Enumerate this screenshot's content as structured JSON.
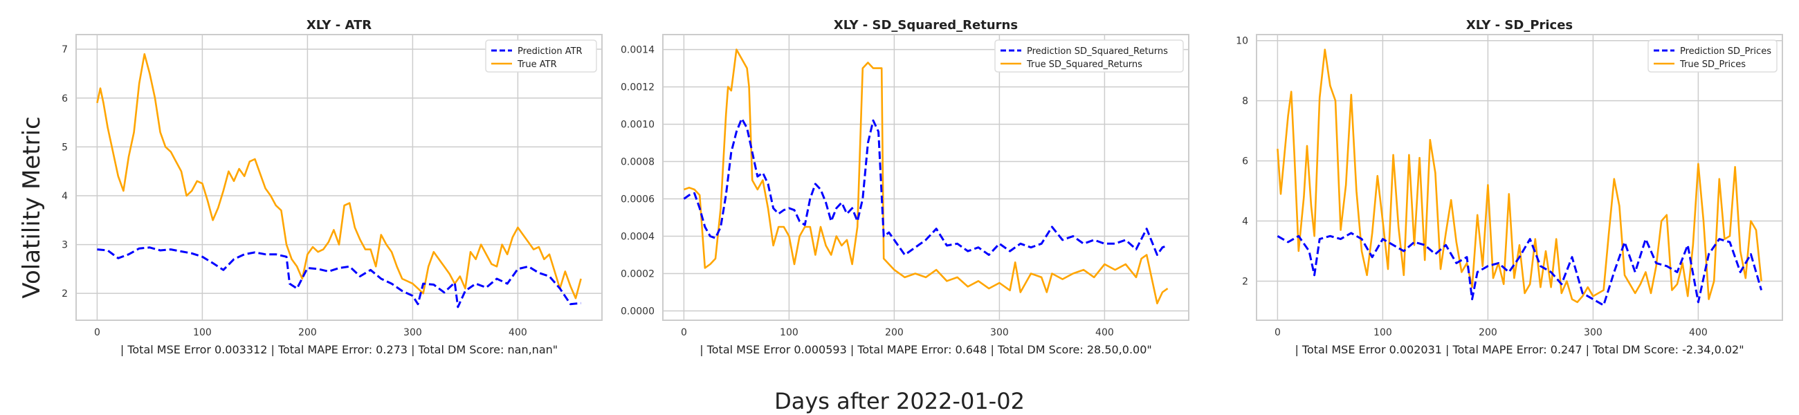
{
  "figure": {
    "ylabel": "Volatility Metric",
    "xlabel": "Days after 2022-01-02"
  },
  "chart_data": [
    {
      "type": "line",
      "title": "XLY - ATR",
      "xlabel": "| Total MSE Error 0.003312 | Total MAPE Error: 0.273 | Total DM Score: nan,nan\"",
      "ylabel": "",
      "xlim": [
        -20,
        480
      ],
      "ylim": [
        1.45,
        7.3
      ],
      "xticks": [
        0,
        100,
        200,
        300,
        400
      ],
      "yticks": [
        2,
        3,
        4,
        5,
        6,
        7
      ],
      "ytick_labels": [
        "2",
        "3",
        "4",
        "5",
        "6",
        "7"
      ],
      "grid": true,
      "legend": "top-right",
      "series": [
        {
          "name": "Prediction ATR",
          "color": "#0000ff",
          "dashed": true,
          "x": [
            0,
            10,
            20,
            30,
            40,
            50,
            60,
            70,
            80,
            90,
            100,
            110,
            120,
            130,
            140,
            150,
            160,
            170,
            180,
            183,
            190,
            200,
            210,
            220,
            230,
            240,
            250,
            260,
            270,
            280,
            290,
            300,
            305,
            310,
            320,
            330,
            340,
            343,
            350,
            360,
            370,
            380,
            390,
            400,
            410,
            420,
            430,
            440,
            450,
            460
          ],
          "values": [
            2.9,
            2.88,
            2.72,
            2.8,
            2.92,
            2.94,
            2.88,
            2.9,
            2.86,
            2.82,
            2.75,
            2.62,
            2.48,
            2.7,
            2.8,
            2.84,
            2.8,
            2.8,
            2.75,
            2.2,
            2.1,
            2.52,
            2.5,
            2.45,
            2.52,
            2.55,
            2.35,
            2.48,
            2.3,
            2.2,
            2.05,
            1.95,
            1.78,
            2.2,
            2.18,
            2.02,
            2.22,
            1.72,
            2.05,
            2.2,
            2.12,
            2.3,
            2.2,
            2.5,
            2.55,
            2.42,
            2.35,
            2.1,
            1.78,
            1.8
          ]
        },
        {
          "name": "True ATR",
          "color": "#ffa500",
          "dashed": false,
          "x": [
            0,
            3,
            6,
            10,
            15,
            20,
            25,
            30,
            35,
            40,
            45,
            50,
            55,
            60,
            65,
            70,
            75,
            80,
            85,
            90,
            95,
            100,
            105,
            110,
            115,
            120,
            125,
            130,
            135,
            140,
            145,
            150,
            155,
            160,
            165,
            170,
            175,
            180,
            185,
            190,
            195,
            200,
            205,
            210,
            215,
            220,
            225,
            230,
            235,
            240,
            245,
            250,
            255,
            260,
            265,
            270,
            275,
            280,
            285,
            290,
            295,
            300,
            305,
            310,
            315,
            320,
            325,
            330,
            335,
            340,
            345,
            350,
            355,
            360,
            365,
            370,
            375,
            380,
            385,
            390,
            395,
            400,
            405,
            410,
            415,
            420,
            425,
            430,
            435,
            440,
            445,
            450,
            455,
            460
          ],
          "values": [
            5.9,
            6.2,
            5.9,
            5.4,
            4.9,
            4.4,
            4.1,
            4.8,
            5.3,
            6.3,
            6.9,
            6.5,
            6.0,
            5.3,
            5.0,
            4.9,
            4.7,
            4.5,
            4.0,
            4.1,
            4.3,
            4.25,
            3.9,
            3.5,
            3.75,
            4.1,
            4.5,
            4.3,
            4.55,
            4.4,
            4.7,
            4.75,
            4.45,
            4.15,
            4.0,
            3.8,
            3.7,
            3.0,
            2.7,
            2.55,
            2.3,
            2.8,
            2.95,
            2.85,
            2.9,
            3.05,
            3.3,
            3.0,
            3.8,
            3.85,
            3.35,
            3.1,
            2.9,
            2.9,
            2.55,
            3.2,
            3.0,
            2.85,
            2.55,
            2.3,
            2.25,
            2.2,
            2.1,
            2.0,
            2.55,
            2.85,
            2.7,
            2.55,
            2.4,
            2.2,
            2.35,
            2.1,
            2.85,
            2.7,
            3.0,
            2.8,
            2.6,
            2.55,
            3.0,
            2.8,
            3.15,
            3.35,
            3.2,
            3.05,
            2.9,
            2.95,
            2.7,
            2.8,
            2.45,
            2.1,
            2.45,
            2.15,
            1.9,
            2.3
          ]
        }
      ]
    },
    {
      "type": "line",
      "title": "XLY - SD_Squared_Returns",
      "xlabel": "| Total MSE Error 0.000593 | Total MAPE Error: 0.648 | Total DM Score: 28.50,0.00\"",
      "ylabel": "",
      "xlim": [
        -20,
        480
      ],
      "ylim": [
        -5e-05,
        0.00148
      ],
      "xticks": [
        0,
        100,
        200,
        300,
        400
      ],
      "yticks": [
        0,
        0.0002,
        0.0004,
        0.0006,
        0.0008,
        0.001,
        0.0012,
        0.0014
      ],
      "ytick_labels": [
        "0.0000",
        "0.0002",
        "0.0004",
        "0.0006",
        "0.0008",
        "0.0010",
        "0.0012",
        "0.0014"
      ],
      "grid": true,
      "legend": "top-right",
      "series": [
        {
          "name": "Prediction SD_Squared_Returns",
          "color": "#0000ff",
          "dashed": true,
          "x": [
            0,
            5,
            10,
            15,
            20,
            25,
            30,
            35,
            40,
            45,
            50,
            55,
            60,
            65,
            70,
            75,
            80,
            85,
            90,
            95,
            100,
            105,
            110,
            115,
            120,
            125,
            130,
            135,
            140,
            145,
            150,
            155,
            160,
            165,
            170,
            175,
            180,
            185,
            190,
            195,
            200,
            210,
            220,
            230,
            240,
            250,
            260,
            270,
            280,
            290,
            300,
            310,
            320,
            330,
            340,
            350,
            360,
            370,
            380,
            390,
            400,
            410,
            420,
            430,
            440,
            450,
            455,
            460
          ],
          "values": [
            0.0006,
            0.00062,
            0.00063,
            0.00055,
            0.00045,
            0.0004,
            0.00039,
            0.00045,
            0.00062,
            0.00085,
            0.00096,
            0.00103,
            0.00098,
            0.00085,
            0.00072,
            0.00074,
            0.00068,
            0.00055,
            0.00052,
            0.00054,
            0.00055,
            0.00054,
            0.00048,
            0.00046,
            0.0006,
            0.00068,
            0.00065,
            0.00058,
            0.00048,
            0.00055,
            0.00058,
            0.00052,
            0.00055,
            0.00048,
            0.0006,
            0.0009,
            0.00102,
            0.00096,
            0.0004,
            0.00042,
            0.00038,
            0.0003,
            0.00034,
            0.00038,
            0.00044,
            0.00035,
            0.00036,
            0.00032,
            0.00034,
            0.0003,
            0.00036,
            0.00032,
            0.00036,
            0.00034,
            0.00036,
            0.00045,
            0.00038,
            0.0004,
            0.00036,
            0.00038,
            0.00036,
            0.00036,
            0.00038,
            0.00033,
            0.00044,
            0.0003,
            0.00034,
            0.00035
          ]
        },
        {
          "name": "True SD_Squared_Returns",
          "color": "#ffa500",
          "dashed": false,
          "x": [
            0,
            5,
            10,
            15,
            20,
            25,
            30,
            35,
            40,
            42,
            45,
            50,
            55,
            60,
            62,
            65,
            70,
            75,
            80,
            85,
            90,
            95,
            100,
            105,
            110,
            115,
            120,
            125,
            130,
            135,
            140,
            145,
            150,
            155,
            160,
            165,
            170,
            175,
            180,
            185,
            188,
            190,
            200,
            210,
            220,
            230,
            240,
            250,
            260,
            270,
            280,
            290,
            300,
            310,
            315,
            320,
            330,
            340,
            345,
            350,
            360,
            370,
            380,
            390,
            400,
            410,
            420,
            430,
            435,
            440,
            450,
            455,
            460
          ],
          "values": [
            0.00065,
            0.00066,
            0.00065,
            0.00062,
            0.00023,
            0.00025,
            0.00028,
            0.00055,
            0.00105,
            0.0012,
            0.00118,
            0.0014,
            0.00135,
            0.0013,
            0.0012,
            0.0007,
            0.00065,
            0.0007,
            0.00055,
            0.00035,
            0.00045,
            0.00045,
            0.0004,
            0.00025,
            0.0004,
            0.00045,
            0.00045,
            0.0003,
            0.00045,
            0.00035,
            0.0003,
            0.0004,
            0.00035,
            0.00038,
            0.00025,
            0.00045,
            0.0013,
            0.00133,
            0.0013,
            0.0013,
            0.0013,
            0.00028,
            0.00022,
            0.00018,
            0.0002,
            0.00018,
            0.00022,
            0.00016,
            0.00018,
            0.00013,
            0.00016,
            0.00012,
            0.00015,
            0.00011,
            0.00026,
            0.0001,
            0.0002,
            0.00018,
            0.0001,
            0.0002,
            0.00017,
            0.0002,
            0.00022,
            0.00018,
            0.00025,
            0.00022,
            0.00025,
            0.00018,
            0.00028,
            0.0003,
            4e-05,
            0.0001,
            0.00012
          ]
        }
      ]
    },
    {
      "type": "line",
      "title": "XLY - SD_Prices",
      "xlabel": "| Total MSE Error 0.002031 | Total MAPE Error: 0.247 | Total DM Score: -2.34,0.02\"",
      "ylabel": "",
      "xlim": [
        -20,
        480
      ],
      "ylim": [
        0.7,
        10.2
      ],
      "xticks": [
        0,
        100,
        200,
        300,
        400
      ],
      "yticks": [
        2,
        4,
        6,
        8,
        10
      ],
      "ytick_labels": [
        "2",
        "4",
        "6",
        "8",
        "10"
      ],
      "grid": true,
      "legend": "top-right",
      "series": [
        {
          "name": "Prediction SD_Prices",
          "color": "#0000ff",
          "dashed": true,
          "x": [
            0,
            10,
            20,
            30,
            35,
            40,
            50,
            60,
            70,
            80,
            90,
            100,
            110,
            120,
            130,
            140,
            150,
            160,
            170,
            180,
            185,
            190,
            200,
            210,
            220,
            230,
            240,
            250,
            260,
            270,
            280,
            290,
            300,
            310,
            320,
            330,
            340,
            350,
            360,
            370,
            380,
            390,
            400,
            410,
            420,
            430,
            440,
            450,
            460
          ],
          "values": [
            3.5,
            3.3,
            3.5,
            3.0,
            2.2,
            3.4,
            3.5,
            3.4,
            3.6,
            3.4,
            2.8,
            3.4,
            3.2,
            3.0,
            3.3,
            3.2,
            2.9,
            3.2,
            2.6,
            2.8,
            1.4,
            2.3,
            2.5,
            2.6,
            2.3,
            2.8,
            3.4,
            2.5,
            2.3,
            1.9,
            2.8,
            1.6,
            1.4,
            1.2,
            2.3,
            3.3,
            2.3,
            3.4,
            2.6,
            2.5,
            2.3,
            3.2,
            1.3,
            2.9,
            3.4,
            3.3,
            2.3,
            2.9,
            1.7
          ]
        },
        {
          "name": "True SD_Prices",
          "color": "#ffa500",
          "dashed": false,
          "x": [
            0,
            3,
            6,
            10,
            13,
            16,
            20,
            25,
            28,
            32,
            35,
            40,
            45,
            50,
            55,
            60,
            65,
            70,
            75,
            80,
            85,
            90,
            95,
            100,
            105,
            110,
            115,
            120,
            125,
            130,
            135,
            140,
            145,
            150,
            155,
            160,
            165,
            170,
            175,
            180,
            185,
            190,
            195,
            200,
            205,
            210,
            215,
            220,
            225,
            230,
            235,
            240,
            245,
            250,
            255,
            260,
            265,
            270,
            275,
            280,
            285,
            290,
            295,
            300,
            305,
            310,
            315,
            320,
            325,
            330,
            335,
            340,
            345,
            350,
            355,
            360,
            365,
            370,
            375,
            380,
            385,
            390,
            395,
            400,
            405,
            410,
            415,
            420,
            425,
            430,
            435,
            440,
            445,
            450,
            455,
            460
          ],
          "values": [
            6.4,
            4.9,
            6.0,
            7.5,
            8.3,
            6.2,
            3.0,
            4.8,
            6.5,
            4.5,
            3.5,
            8.1,
            9.7,
            8.5,
            8.0,
            3.7,
            5.2,
            8.2,
            5.0,
            3.0,
            2.2,
            3.6,
            5.5,
            4.0,
            2.4,
            6.2,
            3.8,
            2.2,
            6.2,
            3.2,
            6.1,
            2.7,
            6.7,
            5.6,
            2.4,
            3.6,
            4.7,
            3.3,
            2.3,
            2.6,
            1.8,
            4.2,
            2.5,
            5.2,
            2.1,
            2.6,
            1.9,
            4.9,
            2.1,
            3.2,
            1.6,
            1.9,
            3.4,
            1.8,
            3.0,
            1.8,
            3.4,
            1.6,
            2.0,
            1.4,
            1.3,
            1.5,
            1.8,
            1.5,
            1.6,
            1.7,
            3.6,
            5.4,
            4.5,
            2.2,
            1.9,
            1.6,
            1.9,
            2.3,
            1.6,
            2.5,
            4.0,
            4.2,
            1.7,
            1.9,
            2.6,
            1.5,
            3.2,
            5.9,
            4.0,
            1.4,
            2.0,
            5.4,
            3.4,
            3.5,
            5.8,
            3.0,
            2.1,
            4.0,
            3.7,
            2.0
          ]
        }
      ]
    }
  ]
}
